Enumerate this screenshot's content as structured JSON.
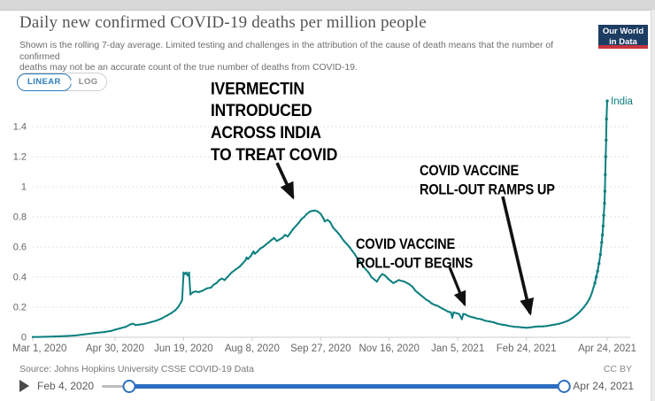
{
  "header": {
    "title": "Daily new confirmed COVID-19 deaths per million people",
    "subtitle_lines": [
      "Shown is the rolling 7-day average. Limited testing and challenges in the attribution of the cause of death means that the number of confirmed",
      "deaths may not be an accurate count of the true number of deaths from COVID-19."
    ],
    "logo": {
      "line1": "Our World",
      "line2": "in Data"
    }
  },
  "controls": {
    "scale_options": [
      "LINEAR",
      "LOG"
    ],
    "selected_scale": "LINEAR",
    "linear_label": "LINEAR",
    "log_label": "LOG"
  },
  "colors": {
    "series_teal": "#0b7f7f",
    "accent_blue": "#2e7dbc",
    "slider_blue": "#2d6ec0",
    "logo_navy": "#1d3d63",
    "logo_red": "#c7353e",
    "annotation_black": "#111111"
  },
  "chart_data": {
    "type": "line",
    "title": "Daily new confirmed COVID-19 deaths per million people",
    "x_unit": "days since Mar 1, 2020",
    "xlim": [
      0,
      419
    ],
    "ylim": [
      0,
      1.6
    ],
    "grid": "horizontal dotted",
    "legend_position": "end-of-line label",
    "yticks": [
      0,
      0.2,
      0.4,
      0.6,
      0.8,
      1,
      1.2,
      1.4
    ],
    "xticks": [
      {
        "day": 0,
        "label": "Mar 1, 2020"
      },
      {
        "day": 60,
        "label": "Apr 30, 2020"
      },
      {
        "day": 110,
        "label": "Jun 19, 2020"
      },
      {
        "day": 160,
        "label": "Aug 8, 2020"
      },
      {
        "day": 210,
        "label": "Sep 27, 2020"
      },
      {
        "day": 260,
        "label": "Nov 16, 2020"
      },
      {
        "day": 310,
        "label": "Jan 5, 2021"
      },
      {
        "day": 360,
        "label": "Feb 24, 2021"
      },
      {
        "day": 419,
        "label": "Apr 24, 2021"
      }
    ],
    "end_label": "India",
    "series": [
      {
        "name": "India",
        "color": "#0b7f7f",
        "points": [
          [
            0,
            0.002
          ],
          [
            8,
            0.003
          ],
          [
            16,
            0.005
          ],
          [
            24,
            0.008
          ],
          [
            31,
            0.012
          ],
          [
            38,
            0.02
          ],
          [
            45,
            0.028
          ],
          [
            52,
            0.035
          ],
          [
            57,
            0.042
          ],
          [
            60,
            0.05
          ],
          [
            64,
            0.06
          ],
          [
            68,
            0.07
          ],
          [
            71,
            0.085
          ],
          [
            73,
            0.09
          ],
          [
            75,
            0.082
          ],
          [
            78,
            0.085
          ],
          [
            82,
            0.09
          ],
          [
            86,
            0.1
          ],
          [
            90,
            0.11
          ],
          [
            94,
            0.125
          ],
          [
            98,
            0.145
          ],
          [
            101,
            0.16
          ],
          [
            104,
            0.18
          ],
          [
            106,
            0.2
          ],
          [
            108,
            0.23
          ],
          [
            109,
            0.25
          ],
          [
            110,
            0.43
          ],
          [
            111,
            0.42
          ],
          [
            112,
            0.43
          ],
          [
            113,
            0.41
          ],
          [
            114,
            0.43
          ],
          [
            115,
            0.285
          ],
          [
            117,
            0.3
          ],
          [
            119,
            0.305
          ],
          [
            121,
            0.3
          ],
          [
            124,
            0.31
          ],
          [
            127,
            0.325
          ],
          [
            130,
            0.33
          ],
          [
            132,
            0.35
          ],
          [
            134,
            0.36
          ],
          [
            136,
            0.38
          ],
          [
            138,
            0.39
          ],
          [
            140,
            0.38
          ],
          [
            142,
            0.4
          ],
          [
            145,
            0.43
          ],
          [
            148,
            0.45
          ],
          [
            151,
            0.47
          ],
          [
            153,
            0.49
          ],
          [
            155,
            0.51
          ],
          [
            156,
            0.53
          ],
          [
            157,
            0.52
          ],
          [
            159,
            0.54
          ],
          [
            160,
            0.555
          ],
          [
            161,
            0.57
          ],
          [
            162,
            0.555
          ],
          [
            164,
            0.57
          ],
          [
            166,
            0.59
          ],
          [
            168,
            0.6
          ],
          [
            170,
            0.615
          ],
          [
            172,
            0.63
          ],
          [
            174,
            0.645
          ],
          [
            176,
            0.66
          ],
          [
            178,
            0.64
          ],
          [
            180,
            0.65
          ],
          [
            182,
            0.66
          ],
          [
            184,
            0.68
          ],
          [
            186,
            0.67
          ],
          [
            188,
            0.695
          ],
          [
            190,
            0.72
          ],
          [
            192,
            0.74
          ],
          [
            194,
            0.76
          ],
          [
            196,
            0.785
          ],
          [
            198,
            0.8
          ],
          [
            200,
            0.82
          ],
          [
            202,
            0.835
          ],
          [
            204,
            0.84
          ],
          [
            206,
            0.842
          ],
          [
            208,
            0.835
          ],
          [
            210,
            0.82
          ],
          [
            212,
            0.79
          ],
          [
            213,
            0.77
          ],
          [
            215,
            0.78
          ],
          [
            217,
            0.765
          ],
          [
            219,
            0.73
          ],
          [
            221,
            0.71
          ],
          [
            223,
            0.69
          ],
          [
            225,
            0.665
          ],
          [
            227,
            0.64
          ],
          [
            229,
            0.62
          ],
          [
            231,
            0.6
          ],
          [
            233,
            0.575
          ],
          [
            235,
            0.55
          ],
          [
            237,
            0.52
          ],
          [
            239,
            0.5
          ],
          [
            241,
            0.47
          ],
          [
            243,
            0.45
          ],
          [
            245,
            0.43
          ],
          [
            247,
            0.4
          ],
          [
            249,
            0.385
          ],
          [
            251,
            0.37
          ],
          [
            253,
            0.4
          ],
          [
            255,
            0.42
          ],
          [
            257,
            0.41
          ],
          [
            259,
            0.39
          ],
          [
            261,
            0.375
          ],
          [
            263,
            0.36
          ],
          [
            265,
            0.37
          ],
          [
            267,
            0.38
          ],
          [
            269,
            0.375
          ],
          [
            271,
            0.37
          ],
          [
            273,
            0.36
          ],
          [
            275,
            0.35
          ],
          [
            277,
            0.335
          ],
          [
            279,
            0.31
          ],
          [
            281,
            0.295
          ],
          [
            283,
            0.28
          ],
          [
            285,
            0.265
          ],
          [
            287,
            0.25
          ],
          [
            289,
            0.24
          ],
          [
            291,
            0.225
          ],
          [
            293,
            0.215
          ],
          [
            295,
            0.21
          ],
          [
            297,
            0.2
          ],
          [
            299,
            0.19
          ],
          [
            301,
            0.18
          ],
          [
            303,
            0.17
          ],
          [
            305,
            0.165
          ],
          [
            306,
            0.13
          ],
          [
            307,
            0.165
          ],
          [
            309,
            0.16
          ],
          [
            311,
            0.155
          ],
          [
            313,
            0.12
          ],
          [
            314,
            0.155
          ],
          [
            316,
            0.15
          ],
          [
            318,
            0.14
          ],
          [
            320,
            0.135
          ],
          [
            322,
            0.13
          ],
          [
            324,
            0.125
          ],
          [
            327,
            0.12
          ],
          [
            330,
            0.11
          ],
          [
            333,
            0.105
          ],
          [
            336,
            0.1
          ],
          [
            339,
            0.09
          ],
          [
            342,
            0.085
          ],
          [
            345,
            0.08
          ],
          [
            348,
            0.075
          ],
          [
            351,
            0.07
          ],
          [
            354,
            0.068
          ],
          [
            357,
            0.065
          ],
          [
            360,
            0.063
          ],
          [
            363,
            0.065
          ],
          [
            366,
            0.07
          ],
          [
            369,
            0.072
          ],
          [
            372,
            0.072
          ],
          [
            375,
            0.075
          ],
          [
            378,
            0.08
          ],
          [
            381,
            0.085
          ],
          [
            384,
            0.09
          ],
          [
            387,
            0.098
          ],
          [
            390,
            0.108
          ],
          [
            392,
            0.118
          ],
          [
            394,
            0.13
          ],
          [
            396,
            0.145
          ],
          [
            398,
            0.16
          ],
          [
            400,
            0.18
          ],
          [
            402,
            0.2
          ],
          [
            404,
            0.225
          ],
          [
            406,
            0.255
          ],
          [
            407,
            0.275
          ],
          [
            408,
            0.3
          ],
          [
            409,
            0.33
          ],
          [
            410,
            0.36
          ],
          [
            411,
            0.4
          ],
          [
            412,
            0.44
          ],
          [
            413,
            0.49
          ],
          [
            414,
            0.55
          ],
          [
            415,
            0.63
          ],
          [
            415.5,
            0.68
          ],
          [
            416,
            0.74
          ],
          [
            416.5,
            0.81
          ],
          [
            417,
            0.89
          ],
          [
            417.3,
            0.97
          ],
          [
            417.6,
            1.08
          ],
          [
            417.9,
            1.2
          ],
          [
            418.2,
            1.31
          ],
          [
            418.5,
            1.45
          ],
          [
            419,
            1.57
          ]
        ]
      }
    ],
    "annotations": [
      {
        "id": "ivermectin",
        "lines": [
          "IVERMECTIN",
          "INTRODUCED",
          "ACROSS INDIA",
          "TO TREAT COVID"
        ]
      },
      {
        "id": "rampsup",
        "lines": [
          "COVID VACCINE",
          "ROLL-OUT RAMPS UP"
        ]
      },
      {
        "id": "begins",
        "lines": [
          "COVID VACCINE",
          "ROLL-OUT BEGINS"
        ]
      }
    ]
  },
  "footer": {
    "source": "Source: Johns Hopkins University CSSE COVID-19 Data",
    "license": "CC BY"
  },
  "timeline": {
    "start_label": "Feb 4, 2020",
    "end_label": "Apr 24, 2021"
  }
}
